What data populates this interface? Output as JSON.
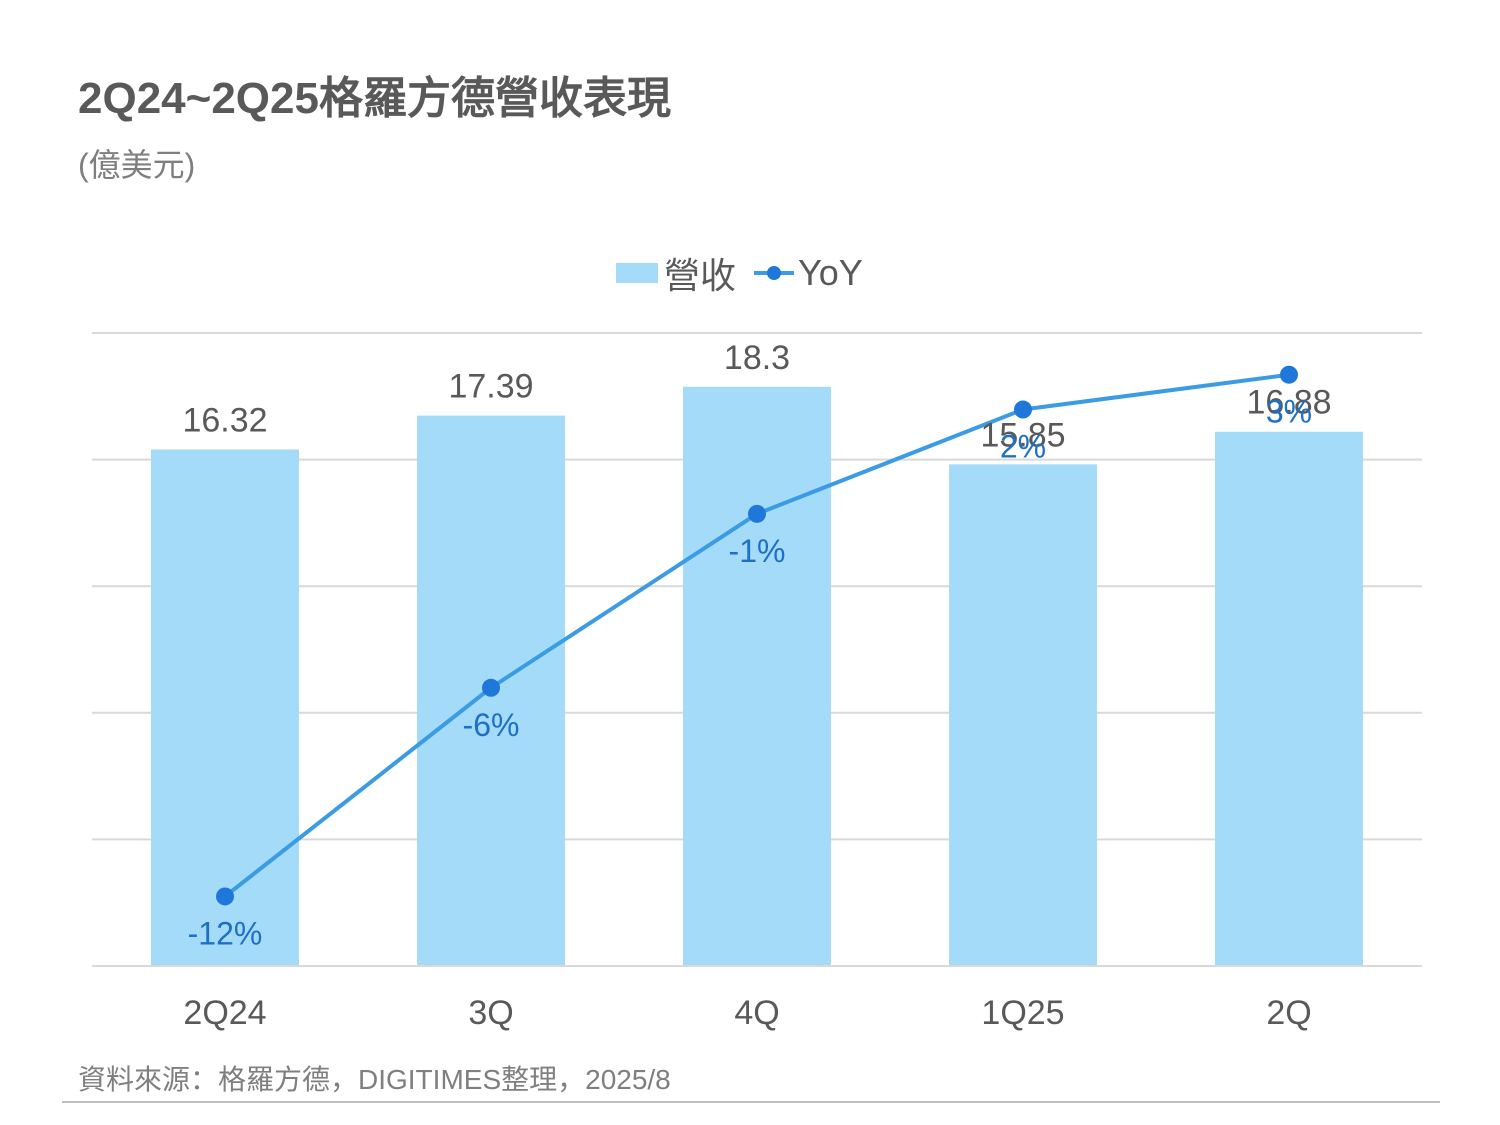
{
  "header": {
    "title": "2Q24~2Q25格羅方德營收表現",
    "unit": "(億美元)"
  },
  "legend": {
    "bar_label": "營收",
    "line_label": "YoY"
  },
  "colors": {
    "bar": "#a3dbf9",
    "line": "#3b9be3",
    "marker": "#1f78d9",
    "line_label": "#1f6fc4",
    "bar_label": "#595959",
    "grid": "#d9d9d9",
    "axis": "#d9d9d9",
    "tick": "#595959"
  },
  "chart_data": {
    "type": "bar+line",
    "categories": [
      "2Q24",
      "3Q",
      "4Q",
      "1Q25",
      "2Q"
    ],
    "series": [
      {
        "name": "營收",
        "type": "bar",
        "values": [
          16.32,
          17.39,
          18.3,
          15.85,
          16.88
        ],
        "labels": [
          "16.32",
          "17.39",
          "18.3",
          "15.85",
          "16.88"
        ]
      },
      {
        "name": "YoY",
        "type": "line",
        "values": [
          -12,
          -6,
          -1,
          2,
          3
        ],
        "labels": [
          "-12%",
          "-6%",
          "-1%",
          "2%",
          "3%"
        ]
      }
    ],
    "ylim": [
      0,
      20
    ],
    "y2lim": [
      -14,
      4.2
    ],
    "grid": true,
    "legend_position": "top-center"
  },
  "footer": {
    "source": "資料來源：格羅方德，DIGITIMES整理，2025/8"
  }
}
